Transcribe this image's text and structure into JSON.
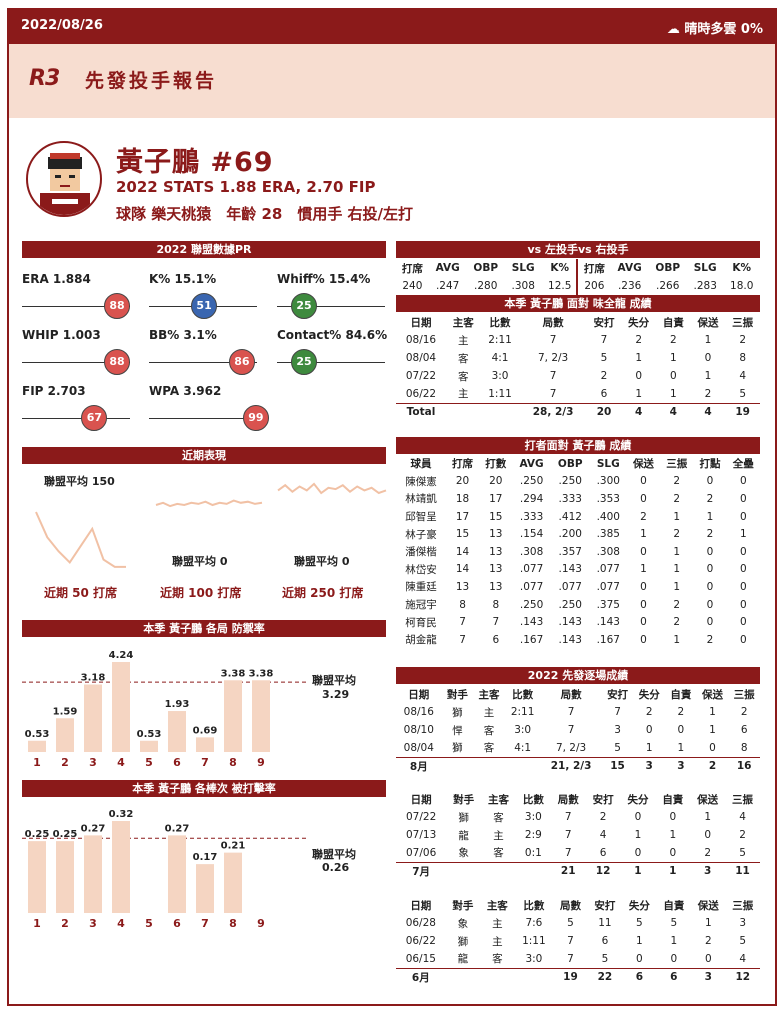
{
  "top": {
    "date": "2022/08/26",
    "weather": "☁ 晴時多雲 0%"
  },
  "header": {
    "logo": "R3",
    "title": "先發投手報告"
  },
  "player": {
    "name": "黃子鵬 #69",
    "stats_line": "2022 STATS 1.88 ERA, 2.70 FIP",
    "info_line": "球隊 樂天桃猿　年齡 28　慣用手 右投/左打"
  },
  "pr": {
    "title": "2022 聯盟數據PR",
    "items": [
      {
        "label": "ERA 1.884",
        "pr": 88,
        "color": "#d9534f"
      },
      {
        "label": "K% 15.1%",
        "pr": 51,
        "color": "#3a66b0"
      },
      {
        "label": "Whiff% 15.4%",
        "pr": 25,
        "color": "#3e8a3e"
      },
      {
        "label": "WHIP 1.003",
        "pr": 88,
        "color": "#d9534f"
      },
      {
        "label": "BB% 3.1%",
        "pr": 86,
        "color": "#d9534f"
      },
      {
        "label": "Contact% 84.6%",
        "pr": 25,
        "color": "#3e8a3e"
      },
      {
        "label": "FIP 2.703",
        "pr": 67,
        "color": "#d9534f"
      },
      {
        "label": "WPA 3.962",
        "pr": 99,
        "color": "#d9534f"
      }
    ]
  },
  "recent": {
    "title": "近期表現",
    "avg_labels": [
      "聯盟平均 150",
      "聯盟平均 0",
      "聯盟平均 0"
    ],
    "captions": [
      "近期 50 打席",
      "近期 100 打席",
      "近期 250 打席"
    ],
    "s50": [
      1.0,
      0.55,
      0.3,
      0.1,
      0.4,
      0.7,
      0.15,
      0.02,
      0.02
    ],
    "s100": [
      0.5,
      0.6,
      0.45,
      0.55,
      0.5,
      0.6,
      0.55,
      0.65,
      0.5,
      0.6,
      0.55,
      0.7,
      0.6,
      0.65,
      0.55,
      0.6
    ],
    "s250": [
      0.6,
      0.8,
      0.55,
      0.75,
      0.6,
      0.85,
      0.5,
      0.7,
      0.65,
      0.8,
      0.55,
      0.75,
      0.6,
      0.7,
      0.5,
      0.6
    ]
  },
  "vs": {
    "title": "vs  左投手vs  右投手",
    "headers": [
      "打席",
      "AVG",
      "OBP",
      "SLG",
      "K%",
      "打席",
      "AVG",
      "OBP",
      "SLG",
      "K%"
    ],
    "row": [
      "240",
      ".247",
      ".280",
      ".308",
      "12.5",
      "206",
      ".236",
      ".266",
      ".283",
      "18.0"
    ]
  },
  "vsteam": {
    "title": "本季 黃子鵬 面對 味全龍 成績",
    "headers": [
      "日期",
      "主客",
      "比數",
      "局數",
      "安打",
      "失分",
      "自責",
      "保送",
      "三振"
    ],
    "rows": [
      [
        "08/16",
        "主",
        "2:11",
        "7",
        "7",
        "2",
        "2",
        "1",
        "2"
      ],
      [
        "08/04",
        "客",
        "4:1",
        "7, 2/3",
        "5",
        "1",
        "1",
        "0",
        "8"
      ],
      [
        "07/22",
        "客",
        "3:0",
        "7",
        "2",
        "0",
        "0",
        "1",
        "4"
      ],
      [
        "06/22",
        "主",
        "1:11",
        "7",
        "6",
        "1",
        "1",
        "2",
        "5"
      ]
    ],
    "total": [
      "Total",
      "",
      "",
      "28, 2/3",
      "20",
      "4",
      "4",
      "4",
      "19"
    ]
  },
  "batters": {
    "title": "打者面對 黃子鵬 成績",
    "headers": [
      "球員",
      "打席",
      "打數",
      "AVG",
      "OBP",
      "SLG",
      "保送",
      "三振",
      "打點",
      "全壘"
    ],
    "rows": [
      [
        "陳傑憲",
        "20",
        "20",
        ".250",
        ".250",
        ".300",
        "0",
        "2",
        "0",
        "0"
      ],
      [
        "林靖凱",
        "18",
        "17",
        ".294",
        ".333",
        ".353",
        "0",
        "2",
        "2",
        "0"
      ],
      [
        "邱智呈",
        "17",
        "15",
        ".333",
        ".412",
        ".400",
        "2",
        "1",
        "1",
        "0"
      ],
      [
        "林子豪",
        "15",
        "13",
        ".154",
        ".200",
        ".385",
        "1",
        "2",
        "2",
        "1"
      ],
      [
        "潘傑楷",
        "14",
        "13",
        ".308",
        ".357",
        ".308",
        "0",
        "1",
        "0",
        "0"
      ],
      [
        "林岱安",
        "14",
        "13",
        ".077",
        ".143",
        ".077",
        "1",
        "1",
        "0",
        "0"
      ],
      [
        "陳重廷",
        "13",
        "13",
        ".077",
        ".077",
        ".077",
        "0",
        "1",
        "0",
        "0"
      ],
      [
        "施冠宇",
        "8",
        "8",
        ".250",
        ".250",
        ".375",
        "0",
        "2",
        "0",
        "0"
      ],
      [
        "柯育民",
        "7",
        "7",
        ".143",
        ".143",
        ".143",
        "0",
        "2",
        "0",
        "0"
      ],
      [
        "胡金龍",
        "7",
        "6",
        ".167",
        ".143",
        ".167",
        "0",
        "1",
        "2",
        "0"
      ]
    ]
  },
  "games": {
    "title": "2022 先發逐場成績",
    "headers": [
      "日期",
      "對手",
      "主客",
      "比數",
      "局數",
      "安打",
      "失分",
      "自責",
      "保送",
      "三振"
    ],
    "months": [
      {
        "rows": [
          [
            "08/16",
            "獅",
            "主",
            "2:11",
            "7",
            "7",
            "2",
            "2",
            "1",
            "2"
          ],
          [
            "08/10",
            "悍",
            "客",
            "3:0",
            "7",
            "3",
            "0",
            "0",
            "1",
            "6"
          ],
          [
            "08/04",
            "獅",
            "客",
            "4:1",
            "7, 2/3",
            "5",
            "1",
            "1",
            "0",
            "8"
          ]
        ],
        "total": [
          "8月",
          "",
          "",
          "",
          "21, 2/3",
          "15",
          "3",
          "3",
          "2",
          "16"
        ]
      },
      {
        "rows": [
          [
            "07/22",
            "獅",
            "客",
            "3:0",
            "7",
            "2",
            "0",
            "0",
            "1",
            "4"
          ],
          [
            "07/13",
            "龍",
            "主",
            "2:9",
            "7",
            "4",
            "1",
            "1",
            "0",
            "2"
          ],
          [
            "07/06",
            "象",
            "客",
            "0:1",
            "7",
            "6",
            "0",
            "0",
            "2",
            "5"
          ]
        ],
        "total": [
          "7月",
          "",
          "",
          "",
          "21",
          "12",
          "1",
          "1",
          "3",
          "11"
        ]
      },
      {
        "rows": [
          [
            "06/28",
            "象",
            "主",
            "7:6",
            "5",
            "11",
            "5",
            "5",
            "1",
            "3"
          ],
          [
            "06/22",
            "獅",
            "主",
            "1:11",
            "7",
            "6",
            "1",
            "1",
            "2",
            "5"
          ],
          [
            "06/15",
            "龍",
            "客",
            "3:0",
            "7",
            "5",
            "0",
            "0",
            "0",
            "4"
          ]
        ],
        "total": [
          "6月",
          "",
          "",
          "",
          "19",
          "22",
          "6",
          "6",
          "3",
          "12"
        ]
      }
    ]
  },
  "chart_data": [
    {
      "type": "bar",
      "title": "本季 黃子鵬 各局 防禦率",
      "categories": [
        "1",
        "2",
        "3",
        "4",
        "5",
        "6",
        "7",
        "8",
        "9"
      ],
      "values": [
        0.53,
        1.59,
        3.18,
        4.24,
        0.53,
        1.93,
        0.69,
        3.38,
        3.38
      ],
      "ylim": [
        0,
        4.24
      ],
      "avg_label": "聯盟平均",
      "avg_value": 3.29
    },
    {
      "type": "bar",
      "title": "本季 黃子鵬 各棒次 被打擊率",
      "categories": [
        "1",
        "2",
        "3",
        "4",
        "5",
        "6",
        "7",
        "8",
        "9"
      ],
      "values": [
        0.25,
        0.25,
        0.27,
        0.32,
        0,
        0.27,
        0.17,
        0.21,
        0
      ],
      "labels": [
        "0.25",
        "0.25",
        "0.27",
        "0.32",
        "",
        "0.27",
        "0.17",
        "0.21",
        ""
      ],
      "ylim": [
        0,
        0.32
      ],
      "avg_label": "聯盟平均",
      "avg_value": 0.26
    }
  ],
  "colors": {
    "brand": "#8b1a1a",
    "bar": "#f5d5c2",
    "header_bg": "#f7ddd0"
  }
}
